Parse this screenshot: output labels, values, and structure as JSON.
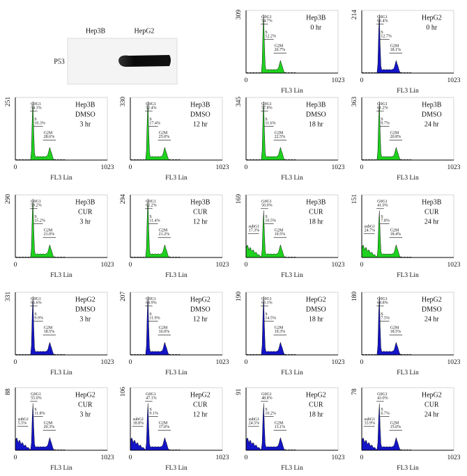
{
  "blot": {
    "lanes": [
      "Hep3B",
      "HepG2"
    ],
    "protein": "P53"
  },
  "panels": [
    {
      "ymax": "309",
      "xmin": "0",
      "xmax": "1023",
      "xlabel": "FL3 Lin",
      "color": "#1ed21e",
      "lines": [
        "Hep3B",
        "0 hr"
      ],
      "gates": [
        {
          "name": "G0G1",
          "pct": "54.7%"
        },
        {
          "name": "S",
          "pct": "12.2%"
        },
        {
          "name": "G2M",
          "pct": "26.7%"
        }
      ]
    },
    {
      "ymax": "214",
      "xmin": "0",
      "xmax": "1023",
      "xlabel": "FL3 Lin",
      "color": "#1414c8",
      "lines": [
        "HepG2",
        "0 hr"
      ],
      "gates": [
        {
          "name": "G0G1",
          "pct": "66.4%"
        },
        {
          "name": "S",
          "pct": "12.7%"
        },
        {
          "name": "G2M",
          "pct": "18.1%"
        }
      ]
    },
    {
      "ymax": "251",
      "xmin": "0",
      "xmax": "1023",
      "xlabel": "FL3 Lin",
      "color": "#1ed21e",
      "lines": [
        "Hep3B",
        "DMSO",
        "3 hr"
      ],
      "gates": [
        {
          "name": "G0G1",
          "pct": "54.3%"
        },
        {
          "name": "S",
          "pct": "10.3%"
        },
        {
          "name": "G2M",
          "pct": "28.6%"
        }
      ]
    },
    {
      "ymax": "330",
      "xmin": "0",
      "xmax": "1023",
      "xlabel": "FL3 Lin",
      "color": "#1ed21e",
      "lines": [
        "Hep3B",
        "DMSO",
        "12 hr"
      ],
      "gates": [
        {
          "name": "G0G1",
          "pct": "52.4%"
        },
        {
          "name": "S",
          "pct": "17.4%"
        },
        {
          "name": "G2M",
          "pct": "25.0%"
        }
      ]
    },
    {
      "ymax": "345",
      "xmin": "0",
      "xmax": "1023",
      "xlabel": "FL3 Lin",
      "color": "#1ed21e",
      "lines": [
        "Hep3B",
        "DMSO",
        "18 hr"
      ],
      "gates": [
        {
          "name": "G0G1",
          "pct": "57.8%"
        },
        {
          "name": "S",
          "pct": "11.6%"
        },
        {
          "name": "G2M",
          "pct": "22.5%"
        }
      ]
    },
    {
      "ymax": "363",
      "xmin": "0",
      "xmax": "1023",
      "xlabel": "FL3 Lin",
      "color": "#1ed21e",
      "lines": [
        "Hep3B",
        "DMSO",
        "24 hr"
      ],
      "gates": [
        {
          "name": "G0G1",
          "pct": "61.2%"
        },
        {
          "name": "S",
          "pct": "9.7%"
        },
        {
          "name": "G2M",
          "pct": "20.8%"
        }
      ]
    },
    {
      "ymax": "290",
      "xmin": "0",
      "xmax": "1023",
      "xlabel": "FL3 Lin",
      "color": "#1ed21e",
      "lines": [
        "Hep3B",
        "CUR",
        "3 hr"
      ],
      "gates": [
        {
          "name": "G0G1",
          "pct": "59.2%"
        },
        {
          "name": "S",
          "pct": "15.2%"
        },
        {
          "name": "G2M",
          "pct": "21.0%"
        }
      ]
    },
    {
      "ymax": "294",
      "xmin": "0",
      "xmax": "1023",
      "xlabel": "FL3 Lin",
      "color": "#1ed21e",
      "lines": [
        "Hep3B",
        "CUR",
        "12 hr"
      ],
      "gates": [
        {
          "name": "G0G1",
          "pct": "62.2%"
        },
        {
          "name": "S",
          "pct": "11.4%"
        },
        {
          "name": "G2M",
          "pct": "21.2%"
        }
      ]
    },
    {
      "ymax": "169",
      "xmin": "0",
      "xmax": "1023",
      "xlabel": "FL3 Lin",
      "color": "#1ed21e",
      "lines": [
        "Hep3B",
        "CUR",
        "18 hr"
      ],
      "gates": [
        {
          "name": "subG1",
          "pct": "17.3%"
        },
        {
          "name": "G0G1",
          "pct": "50.0%"
        },
        {
          "name": "S",
          "pct": "10.5%"
        },
        {
          "name": "G2M",
          "pct": "19.5%"
        }
      ]
    },
    {
      "ymax": "151",
      "xmin": "0",
      "xmax": "1023",
      "xlabel": "FL3 Lin",
      "color": "#1ed21e",
      "lines": [
        "Hep3B",
        "CUR",
        "24 hr"
      ],
      "gates": [
        {
          "name": "subG1",
          "pct": "24.7%"
        },
        {
          "name": "G0G1",
          "pct": "41.0%"
        },
        {
          "name": "S",
          "pct": "7.8%"
        },
        {
          "name": "G2M",
          "pct": "18.4%"
        }
      ]
    },
    {
      "ymax": "331",
      "xmin": "0",
      "xmax": "1023",
      "xlabel": "FL3 Lin",
      "color": "#1414c8",
      "lines": [
        "HepG2",
        "DMSO",
        "3 hr"
      ],
      "gates": [
        {
          "name": "G0G1",
          "pct": "66.6%"
        },
        {
          "name": "S",
          "pct": "9.9%"
        },
        {
          "name": "G2M",
          "pct": "18.5%"
        }
      ]
    },
    {
      "ymax": "207",
      "xmin": "0",
      "xmax": "1023",
      "xlabel": "FL3 Lin",
      "color": "#1414c8",
      "lines": [
        "HepG2",
        "DMSO",
        "12 hr"
      ],
      "gates": [
        {
          "name": "G0G1",
          "pct": "68.9%"
        },
        {
          "name": "S",
          "pct": "11.9%"
        },
        {
          "name": "G2M",
          "pct": "16.0%"
        }
      ]
    },
    {
      "ymax": "190",
      "xmin": "0",
      "xmax": "1023",
      "xlabel": "FL3 Lin",
      "color": "#1414c8",
      "lines": [
        "HepG2",
        "DMSO",
        "18 hr"
      ],
      "gates": [
        {
          "name": "G0G1",
          "pct": "63.1%"
        },
        {
          "name": "S",
          "pct": "14.5%"
        },
        {
          "name": "G2M",
          "pct": "19.3%"
        }
      ]
    },
    {
      "ymax": "180",
      "xmin": "0",
      "xmax": "1023",
      "xlabel": "FL3 Lin",
      "color": "#1414c8",
      "lines": [
        "HepG2",
        "DMSO",
        "24 hr"
      ],
      "gates": [
        {
          "name": "G0G1",
          "pct": "68.8%"
        },
        {
          "name": "S",
          "pct": "7.5%"
        },
        {
          "name": "G2M",
          "pct": "18.5%"
        }
      ]
    },
    {
      "ymax": "88",
      "xmin": "0",
      "xmax": "1023",
      "xlabel": "FL3 Lin",
      "color": "#1414c8",
      "lines": [
        "HepG2",
        "CUR",
        "3 hr"
      ],
      "gates": [
        {
          "name": "subG1",
          "pct": "5.5%"
        },
        {
          "name": "G0G1",
          "pct": "55.0%"
        },
        {
          "name": "S",
          "pct": "11.8%"
        },
        {
          "name": "G2M",
          "pct": "20.3%"
        }
      ]
    },
    {
      "ymax": "106",
      "xmin": "0",
      "xmax": "1023",
      "xlabel": "FL3 Lin",
      "color": "#1414c8",
      "lines": [
        "HepG2",
        "CUR",
        "12 hr"
      ],
      "gates": [
        {
          "name": "subG1",
          "pct": "18.8%"
        },
        {
          "name": "G0G1",
          "pct": "47.1%"
        },
        {
          "name": "S",
          "pct": "9.1%"
        },
        {
          "name": "G2M",
          "pct": "17.0%"
        }
      ]
    },
    {
      "ymax": "91",
      "xmin": "0",
      "xmax": "1023",
      "xlabel": "FL3 Lin",
      "color": "#1414c8",
      "lines": [
        "HepG2",
        "CUR",
        "18 hr"
      ],
      "gates": [
        {
          "name": "subG1",
          "pct": "24.5%"
        },
        {
          "name": "G0G1",
          "pct": "48.8%"
        },
        {
          "name": "S",
          "pct": "10.2%"
        },
        {
          "name": "G2M",
          "pct": "13.1%"
        }
      ]
    },
    {
      "ymax": "78",
      "xmin": "0",
      "xmax": "1023",
      "xlabel": "FL3 Lin",
      "color": "#1414c8",
      "lines": [
        "HepG2",
        "CUR",
        "24 hr"
      ],
      "gates": [
        {
          "name": "subG1",
          "pct": "33.9%"
        },
        {
          "name": "G0G1",
          "pct": "43.0%"
        },
        {
          "name": "S",
          "pct": "6.7%"
        },
        {
          "name": "G2M",
          "pct": "15.0%"
        }
      ]
    }
  ]
}
